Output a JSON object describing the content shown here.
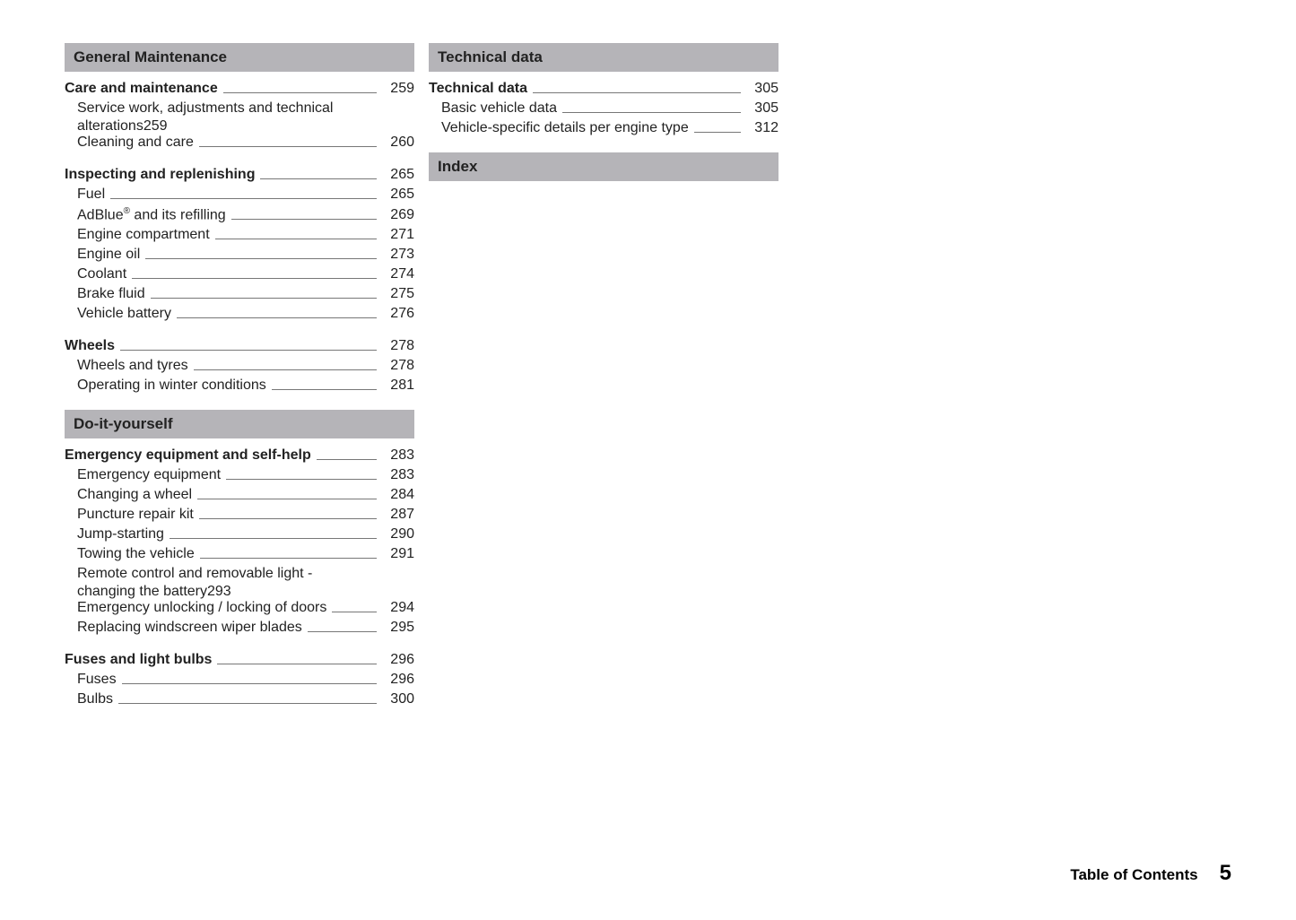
{
  "page": {
    "footer_label": "Table of Contents",
    "page_number": "5"
  },
  "left": {
    "sections": [
      {
        "header": "General Maintenance",
        "groups": [
          {
            "heading": {
              "label": "Care and maintenance",
              "page": "259"
            },
            "items": [
              {
                "wrap": true,
                "line1": "Service work, adjustments and technical",
                "line2": "alterations",
                "page": "259"
              },
              {
                "label": "Cleaning and care",
                "page": "260"
              }
            ]
          },
          {
            "heading": {
              "label": "Inspecting and replenishing",
              "page": "265"
            },
            "items": [
              {
                "label": "Fuel",
                "page": "265"
              },
              {
                "html": true,
                "label": "AdBlue<sup>®</sup> and its refilling",
                "page": "269"
              },
              {
                "label": "Engine compartment",
                "page": "271"
              },
              {
                "label": "Engine oil",
                "page": "273"
              },
              {
                "label": "Coolant",
                "page": "274"
              },
              {
                "label": "Brake fluid",
                "page": "275"
              },
              {
                "label": "Vehicle battery",
                "page": "276"
              }
            ]
          },
          {
            "heading": {
              "label": "Wheels",
              "page": "278"
            },
            "items": [
              {
                "label": "Wheels and tyres",
                "page": "278"
              },
              {
                "label": "Operating in winter conditions",
                "page": "281"
              }
            ]
          }
        ]
      },
      {
        "header": "Do-it-yourself",
        "groups": [
          {
            "heading": {
              "label": "Emergency equipment and self-help",
              "page": "283"
            },
            "items": [
              {
                "label": "Emergency equipment",
                "page": "283"
              },
              {
                "label": "Changing a wheel",
                "page": "284"
              },
              {
                "label": "Puncture repair kit",
                "page": "287"
              },
              {
                "label": "Jump-starting",
                "page": "290"
              },
              {
                "label": "Towing the vehicle",
                "page": "291"
              },
              {
                "wrap": true,
                "line1": "Remote control and removable light -",
                "line2": "changing the battery",
                "page": "293"
              },
              {
                "label": "Emergency unlocking / locking of doors",
                "page": "294"
              },
              {
                "label": "Replacing windscreen wiper blades",
                "page": "295"
              }
            ]
          },
          {
            "heading": {
              "label": "Fuses and light bulbs",
              "page": "296"
            },
            "items": [
              {
                "label": "Fuses",
                "page": "296"
              },
              {
                "label": "Bulbs",
                "page": "300"
              }
            ]
          }
        ]
      }
    ]
  },
  "right": {
    "sections": [
      {
        "header": "Technical data",
        "groups": [
          {
            "heading": {
              "label": "Technical data",
              "page": "305"
            },
            "items": [
              {
                "label": "Basic vehicle data",
                "page": "305"
              },
              {
                "label": "Vehicle-specific details per engine type",
                "page": "312"
              }
            ]
          }
        ]
      },
      {
        "header": "Index",
        "groups": []
      }
    ]
  }
}
